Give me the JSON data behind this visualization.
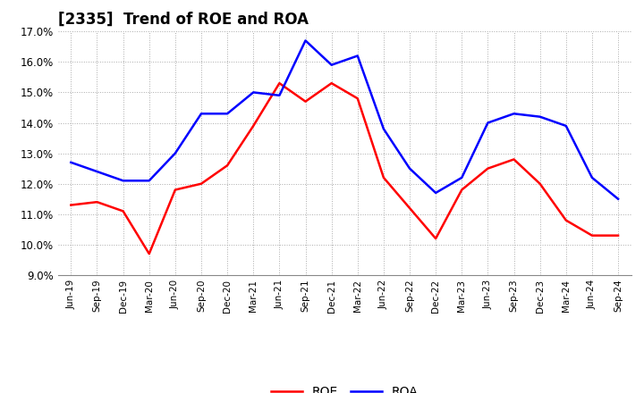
{
  "title": "[2335]  Trend of ROE and ROA",
  "labels": [
    "Jun-19",
    "Sep-19",
    "Dec-19",
    "Mar-20",
    "Jun-20",
    "Sep-20",
    "Dec-20",
    "Mar-21",
    "Jun-21",
    "Sep-21",
    "Dec-21",
    "Mar-22",
    "Jun-22",
    "Sep-22",
    "Dec-22",
    "Mar-23",
    "Jun-23",
    "Sep-23",
    "Dec-23",
    "Mar-24",
    "Jun-24",
    "Sep-24"
  ],
  "ROE": [
    11.3,
    11.4,
    11.1,
    9.7,
    11.8,
    12.0,
    12.6,
    13.9,
    15.3,
    14.7,
    15.3,
    14.8,
    12.2,
    11.2,
    10.2,
    11.8,
    12.5,
    12.8,
    12.0,
    10.8,
    10.3,
    10.3
  ],
  "ROA": [
    12.7,
    12.4,
    12.1,
    12.1,
    13.0,
    14.3,
    14.3,
    15.0,
    14.9,
    16.7,
    15.9,
    16.2,
    13.8,
    12.5,
    11.7,
    12.2,
    14.0,
    14.3,
    14.2,
    13.9,
    12.2,
    11.5
  ],
  "roe_color": "#FF0000",
  "roa_color": "#0000FF",
  "ylim": [
    9.0,
    17.0
  ],
  "yticks": [
    9.0,
    10.0,
    11.0,
    12.0,
    13.0,
    14.0,
    15.0,
    16.0,
    17.0
  ],
  "background_color": "#FFFFFF",
  "grid_color": "#AAAAAA",
  "title_fontsize": 12,
  "line_width": 1.8
}
